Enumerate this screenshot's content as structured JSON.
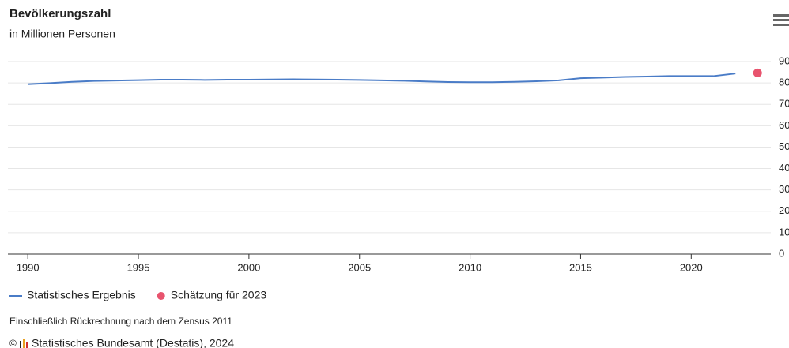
{
  "chart_data": {
    "type": "line",
    "title": "Bevölkerungszahl",
    "subtitle": "in Millionen Personen",
    "series": [
      {
        "name": "Statistisches Ergebnis",
        "color": "#4a7cc7",
        "type": "line",
        "x": [
          1990,
          1991,
          1992,
          1993,
          1994,
          1995,
          1996,
          1997,
          1998,
          1999,
          2000,
          2001,
          2002,
          2003,
          2004,
          2005,
          2006,
          2007,
          2008,
          2009,
          2010,
          2011,
          2012,
          2013,
          2014,
          2015,
          2016,
          2017,
          2018,
          2019,
          2020,
          2021,
          2022
        ],
        "values": [
          79.4,
          79.9,
          80.5,
          80.9,
          81.1,
          81.3,
          81.5,
          81.5,
          81.4,
          81.5,
          81.5,
          81.6,
          81.7,
          81.6,
          81.5,
          81.4,
          81.2,
          81.0,
          80.7,
          80.4,
          80.3,
          80.3,
          80.5,
          80.8,
          81.2,
          82.2,
          82.5,
          82.8,
          83.0,
          83.2,
          83.2,
          83.2,
          84.4
        ]
      },
      {
        "name": "Schätzung für 2023",
        "color": "#e8546e",
        "type": "scatter",
        "x": [
          2023
        ],
        "values": [
          84.7
        ]
      }
    ],
    "xlim": [
      1989.1,
      2023.6
    ],
    "xticks": [
      1990,
      1995,
      2000,
      2005,
      2010,
      2015,
      2020
    ],
    "ylim": [
      0,
      90
    ],
    "yticks": [
      0,
      10,
      20,
      30,
      40,
      50,
      60,
      70,
      80,
      90
    ],
    "grid": true,
    "note": "Einschließlich Rückrechnung nach dem Zensus 2011",
    "copyright": "©",
    "credit": "Statistisches Bundesamt (Destatis), 2024"
  }
}
